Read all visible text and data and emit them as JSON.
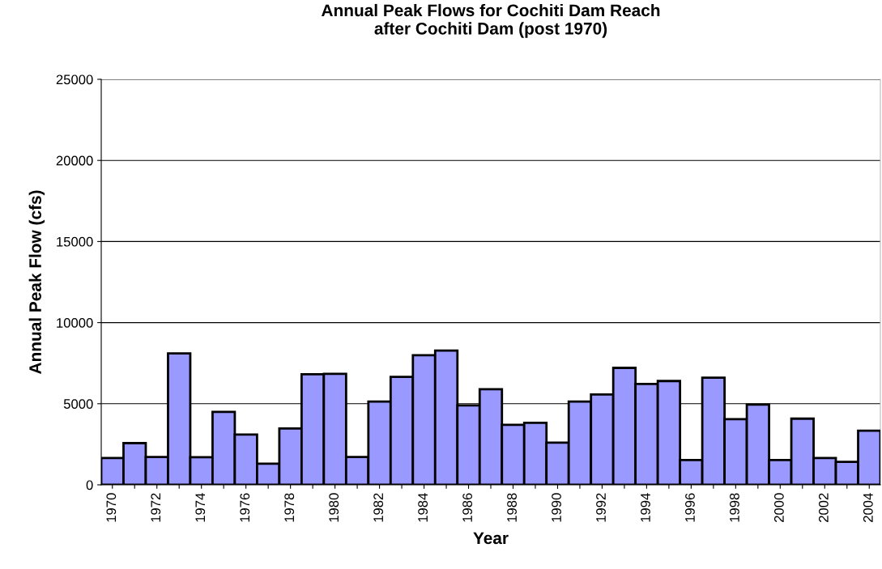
{
  "chart_data": {
    "type": "bar",
    "title": "Annual Peak Flows for Cochiti Dam Reach\nafter Cochiti Dam (post 1970)",
    "xlabel": "Year",
    "ylabel": "Annual Peak Flow (cfs)",
    "categories": [
      "1970",
      null,
      "1972",
      null,
      "1974",
      null,
      "1976",
      null,
      "1978",
      null,
      "1980",
      null,
      "1982",
      null,
      "1984",
      null,
      "1986",
      null,
      "1988",
      null,
      "1990",
      null,
      "1992",
      null,
      "1994",
      null,
      "1996",
      null,
      "1998",
      null,
      "2000",
      null,
      "2002",
      null,
      "2004"
    ],
    "values": [
      1650,
      2570,
      1720,
      8100,
      1700,
      4500,
      3100,
      1300,
      3470,
      6820,
      6840,
      1720,
      5130,
      6660,
      7990,
      8280,
      4900,
      5900,
      3700,
      3820,
      2600,
      5130,
      5570,
      7210,
      6220,
      6400,
      1530,
      6600,
      4050,
      4950,
      1530,
      4080,
      1650,
      1420,
      3340
    ],
    "color": "#9999ff",
    "ylim": [
      0,
      25000
    ],
    "yticks": [
      0,
      5000,
      10000,
      15000,
      20000,
      25000
    ],
    "grid": "y",
    "legend": false
  }
}
